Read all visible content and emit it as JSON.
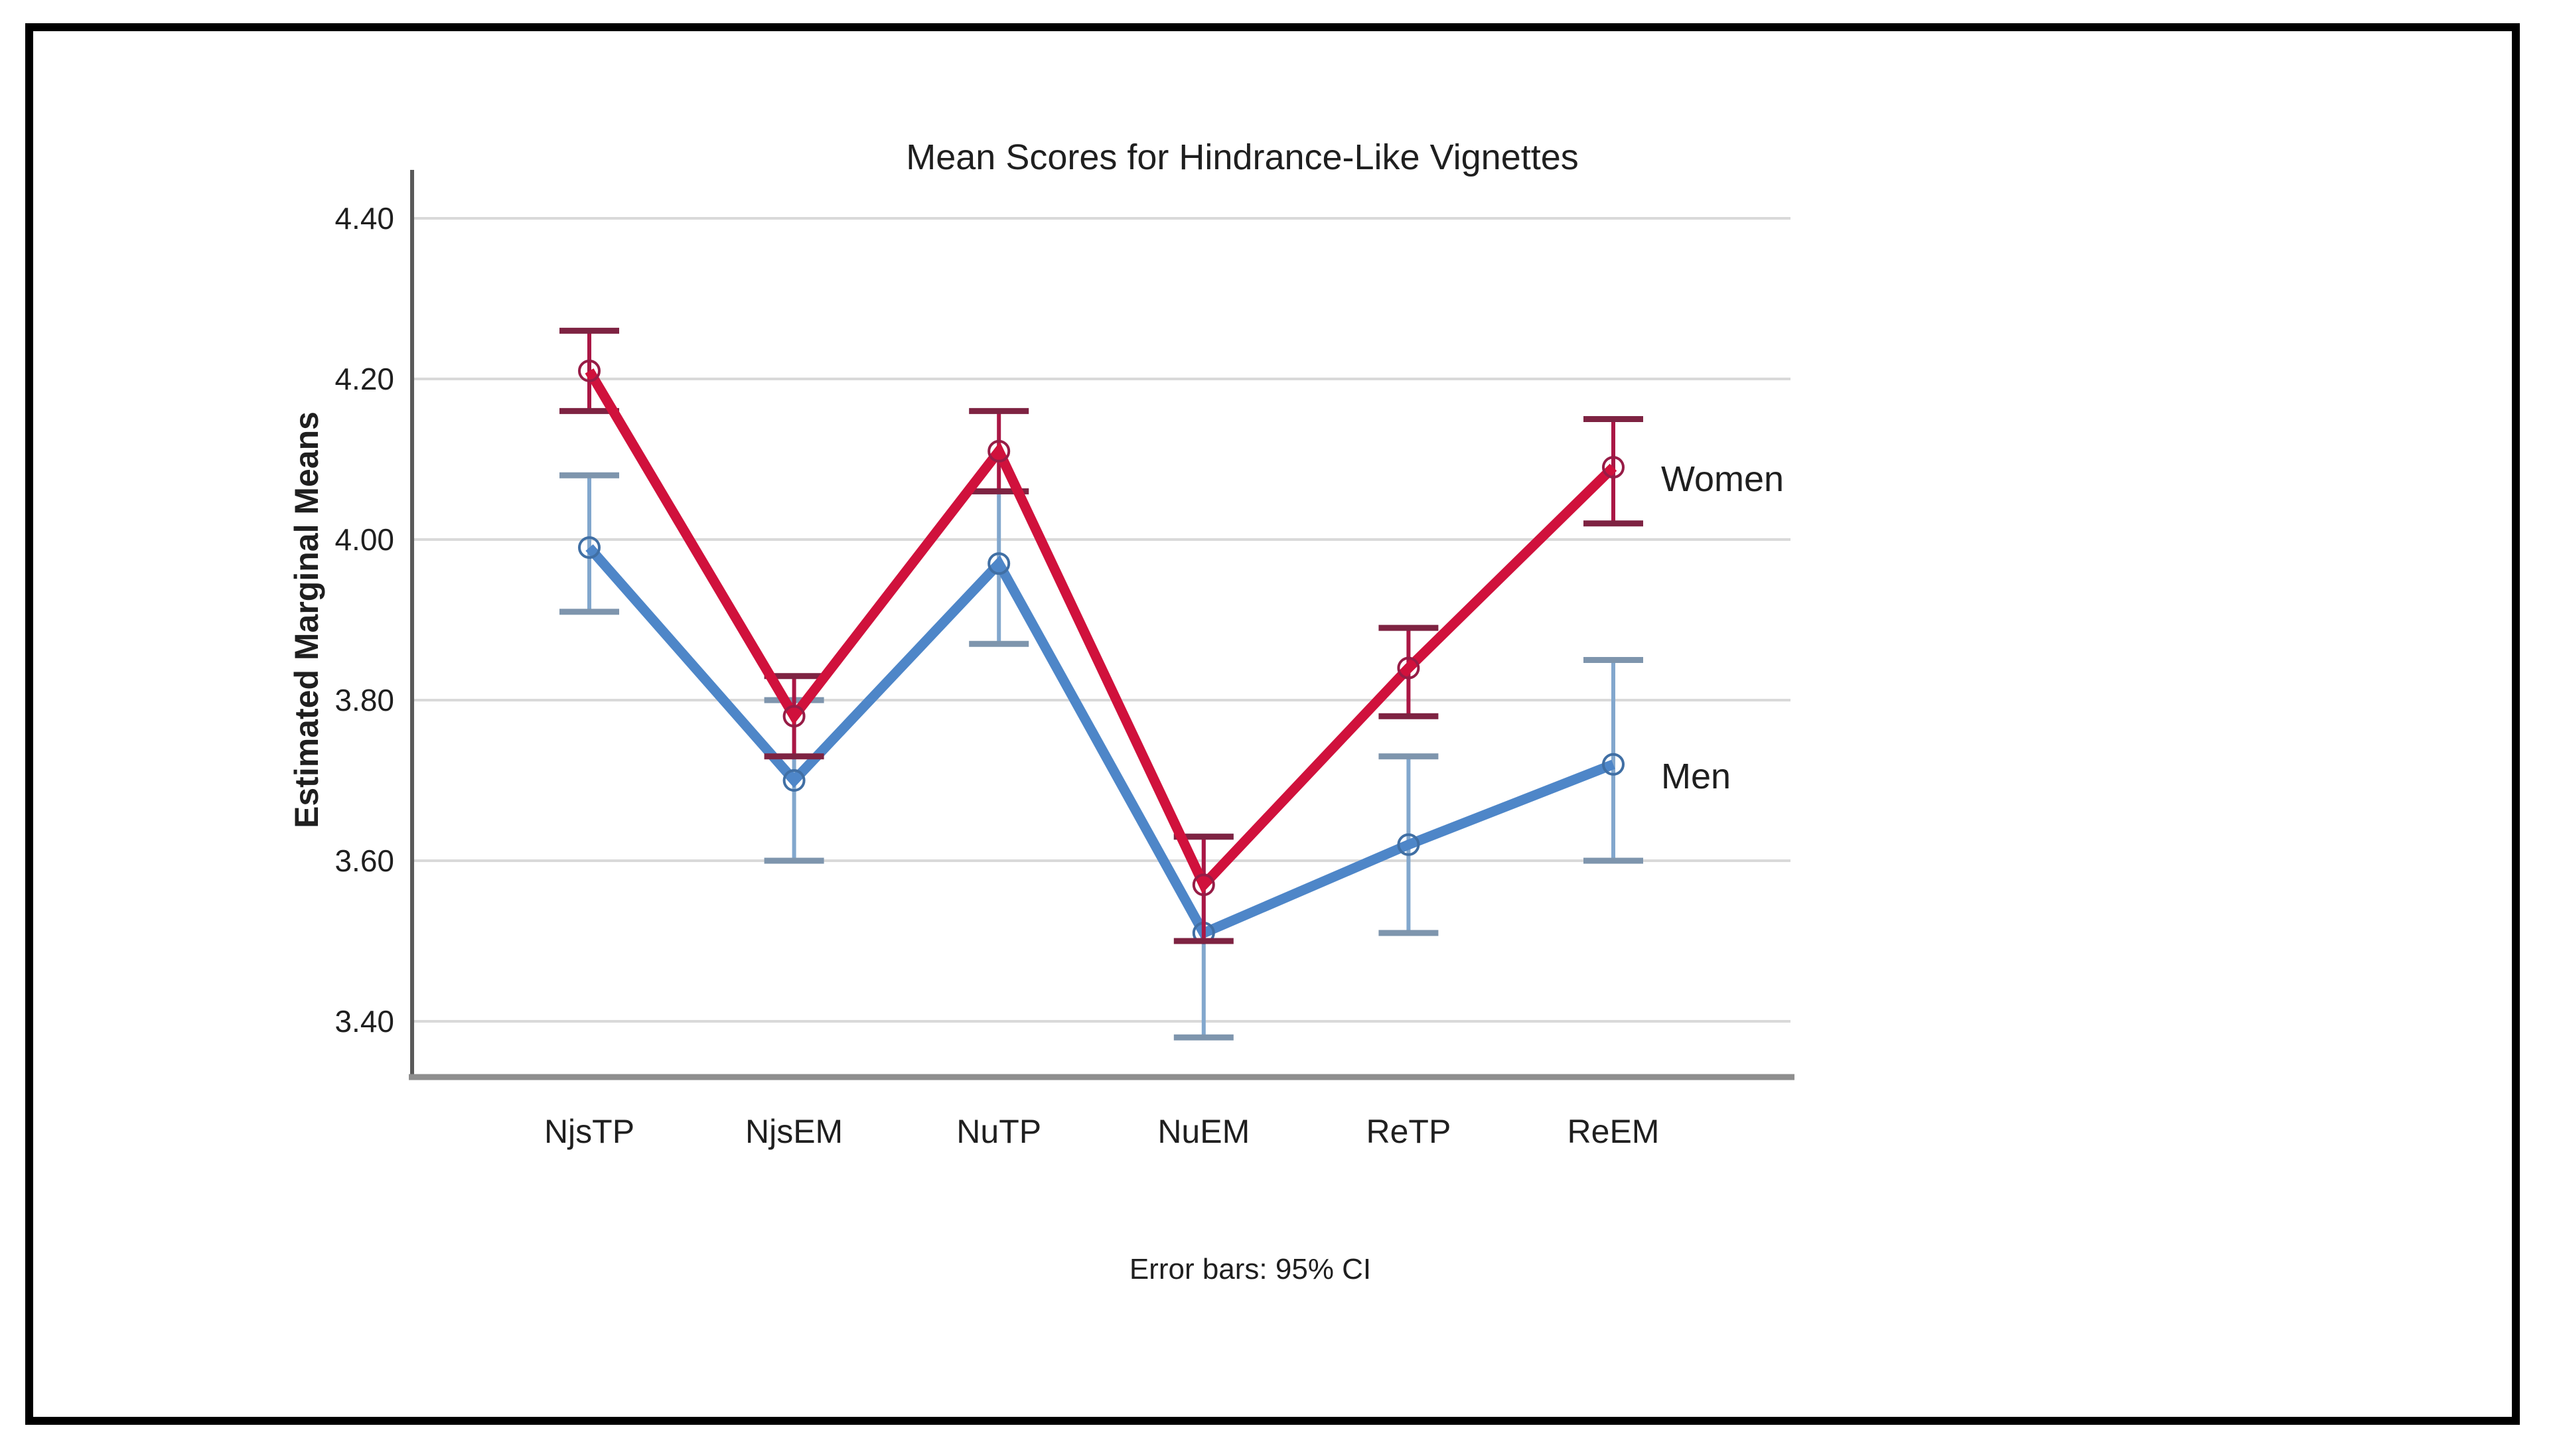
{
  "header": {
    "title": "Mean Scores for Hindrance-Like Vignettes"
  },
  "chart_data": {
    "type": "line",
    "title": "Mean Scores for Hindrance-Like Vignettes",
    "ylabel": "Estimated Marginal Means",
    "xlabel": "",
    "caption": "Error bars: 95% CI",
    "error_bars": "95% CI",
    "grid": "horizontal",
    "legend_position": "inline-right-of-last-point",
    "categories": [
      "NjsTP",
      "NjsEM",
      "NuTP",
      "NuEM",
      "ReTP",
      "ReEM"
    ],
    "yticks": [
      4.4,
      4.2,
      4.0,
      3.8,
      3.6,
      3.4
    ],
    "ytick_labels": [
      "4.40",
      "4.20",
      "4.00",
      "3.80",
      "3.60",
      "3.40"
    ],
    "ylim": [
      3.4,
      4.4
    ],
    "series": [
      {
        "name": "Men",
        "means": [
          3.99,
          3.7,
          3.97,
          3.51,
          3.62,
          3.72
        ],
        "ci_low": [
          3.91,
          3.6,
          3.87,
          3.38,
          3.51,
          3.6
        ],
        "ci_high": [
          4.08,
          3.8,
          4.06,
          3.63,
          3.73,
          3.85
        ],
        "colors": {
          "line": "#4e86c8",
          "ci_line": "#82a7cd",
          "cap": "#7e95ad",
          "marker": "#406fa4"
        }
      },
      {
        "name": "Women",
        "means": [
          4.21,
          3.78,
          4.11,
          3.57,
          3.84,
          4.09
        ],
        "ci_low": [
          4.16,
          3.73,
          4.06,
          3.5,
          3.78,
          4.02
        ],
        "ci_high": [
          4.26,
          3.83,
          4.16,
          3.63,
          3.89,
          4.15
        ],
        "colors": {
          "line": "#d0113c",
          "ci_line": "#aa1745",
          "cap": "#7e2342",
          "marker": "#971c46"
        }
      }
    ],
    "style_colors": {
      "gridline": "#d9d9d9",
      "y_axis_line": "#5a5a5a",
      "x_axis_line": "#8e8e8e",
      "text": "#1f1f1f"
    }
  }
}
